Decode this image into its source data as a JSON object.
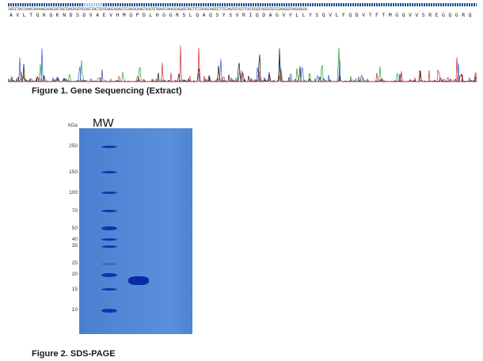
{
  "figure1": {
    "caption": "Figure 1. Gene Sequencing (Extract)",
    "amino_acids": [
      "A",
      "V",
      "L",
      "T",
      "Q",
      "K",
      "Q",
      "K",
      "N",
      "D",
      "S",
      "D",
      "V",
      "A",
      "E",
      "V",
      "H",
      "M",
      "Q",
      "P",
      "D",
      "L",
      "H",
      "G",
      "G",
      "R",
      "S",
      "L",
      "Q",
      "A",
      "Q",
      "S",
      "Y",
      "S",
      "V",
      "R",
      "I",
      "Q",
      "D",
      "A",
      "G",
      "V",
      "Y",
      "L",
      "L",
      "Y",
      "S",
      "Q",
      "V",
      "L",
      "F",
      "Q",
      "D",
      "V",
      "T",
      "F",
      "T",
      "M",
      "G",
      "Q",
      "V",
      "V",
      "S",
      "R",
      "E",
      "G",
      "Q",
      "G",
      "R",
      "Q"
    ],
    "base_strip": "CAGTGCTGACCCAAAACCAGAAAAACGACAGCGATGTAGCTGAAGTACATATGCAGCCTGACCTGCATGGAGGCAGGAGCCTCCAAGCACAGAGCTACAGTGTTAGAATCCAAGACGCAGGAGTGTACCTTCTCTACAGCCAAGTGCTTTTCCAAGATGTCACCTTCACCATGGGTCAGGTGGTGTCCCGAGAGGGTCAAGGGAGGCAG"
  },
  "figure2": {
    "caption": "Figure 2. SDS-PAGE",
    "unit_label": "KDa",
    "mw_label": "MW",
    "markers_kda": [
      250,
      150,
      100,
      70,
      50,
      40,
      35,
      25,
      20,
      15,
      10
    ],
    "sample_band_kda": 18,
    "colors": {
      "gel": "#5588d6",
      "band": "#0a2aa8"
    }
  }
}
